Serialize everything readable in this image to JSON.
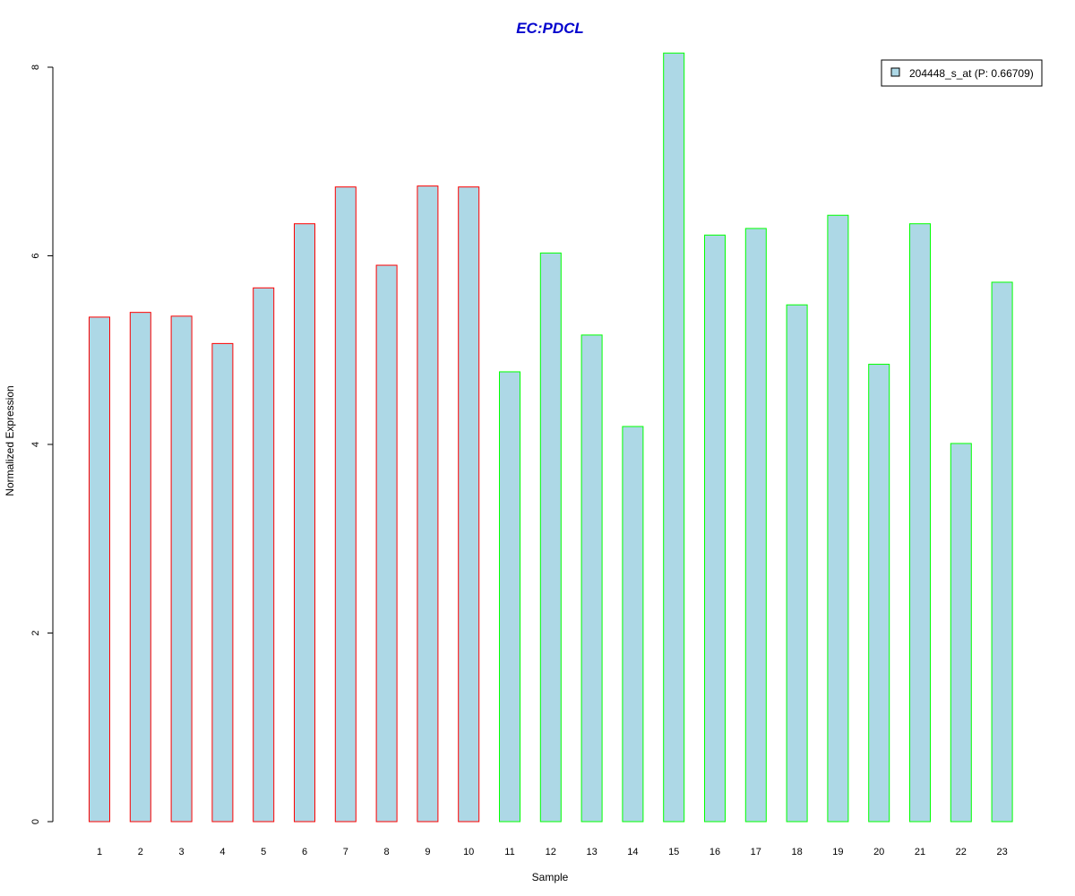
{
  "chart_data": {
    "type": "bar",
    "title": "EC:PDCL",
    "xlabel": "Sample",
    "ylabel": "Normalized Expression",
    "categories": [
      "1",
      "2",
      "3",
      "4",
      "5",
      "6",
      "7",
      "8",
      "9",
      "10",
      "11",
      "12",
      "13",
      "14",
      "15",
      "16",
      "17",
      "18",
      "19",
      "20",
      "21",
      "22",
      "23"
    ],
    "series": [
      {
        "name": "204448_s_at (P: 0.66709)",
        "values": [
          5.35,
          5.4,
          5.36,
          5.07,
          5.66,
          6.34,
          6.73,
          5.9,
          6.74,
          6.73,
          4.77,
          6.03,
          5.16,
          4.19,
          8.15,
          6.22,
          6.29,
          5.48,
          6.43,
          4.85,
          6.34,
          4.01,
          5.72
        ],
        "fill_color": "#add8e6"
      }
    ],
    "group_border_colors": [
      "#ff0000",
      "#ff0000",
      "#ff0000",
      "#ff0000",
      "#ff0000",
      "#ff0000",
      "#ff0000",
      "#ff0000",
      "#ff0000",
      "#ff0000",
      "#00ff00",
      "#00ff00",
      "#00ff00",
      "#00ff00",
      "#00ff00",
      "#00ff00",
      "#00ff00",
      "#00ff00",
      "#00ff00",
      "#00ff00",
      "#00ff00",
      "#00ff00",
      "#00ff00"
    ],
    "yticks": [
      0,
      2,
      4,
      6,
      8
    ],
    "ylim": [
      0,
      8.15
    ],
    "grid": false,
    "legend_position": "top-right",
    "title_color": "#0000cd"
  }
}
